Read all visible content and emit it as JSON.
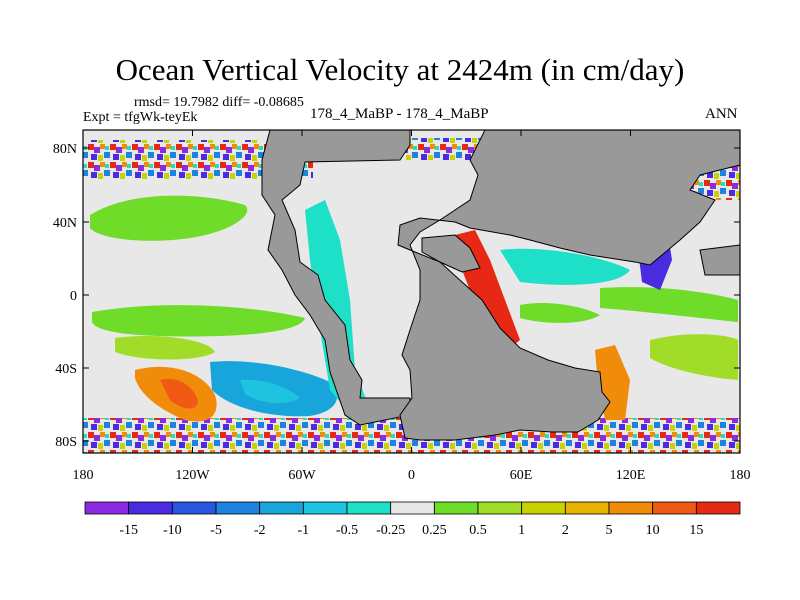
{
  "header": {
    "title": "Ocean Vertical Velocity at 2424m (in cm/day)",
    "rmsd_line": "rmsd= 19.7982 diff= -0.08685",
    "expt_line": "Expt = tfgWk-teyEk",
    "case_line": "178_4_MaBP - 178_4_MaBP",
    "season": "ANN"
  },
  "map": {
    "lon_ticks": [
      "180",
      "120W",
      "60W",
      "0",
      "60E",
      "120E",
      "180"
    ],
    "lat_ticks": [
      "80N",
      "40N",
      "0",
      "40S",
      "80S"
    ],
    "land_color": "#999999",
    "ocean_background_color": "#e8e8e8"
  },
  "colorbar": {
    "labels": [
      "-15",
      "-10",
      "-5",
      "-2",
      "-1",
      "-0.5",
      "-0.25",
      "0.25",
      "0.5",
      "1",
      "2",
      "5",
      "10",
      "15"
    ],
    "colors": [
      "#8a2be2",
      "#4b2be0",
      "#2a55e0",
      "#1e82e0",
      "#17a5dc",
      "#1ec3e0",
      "#1ee0c8",
      "#e8e8e8",
      "#6edc28",
      "#a0dc28",
      "#c8d200",
      "#e6b400",
      "#f08c0a",
      "#f05a14",
      "#e62814"
    ]
  }
}
